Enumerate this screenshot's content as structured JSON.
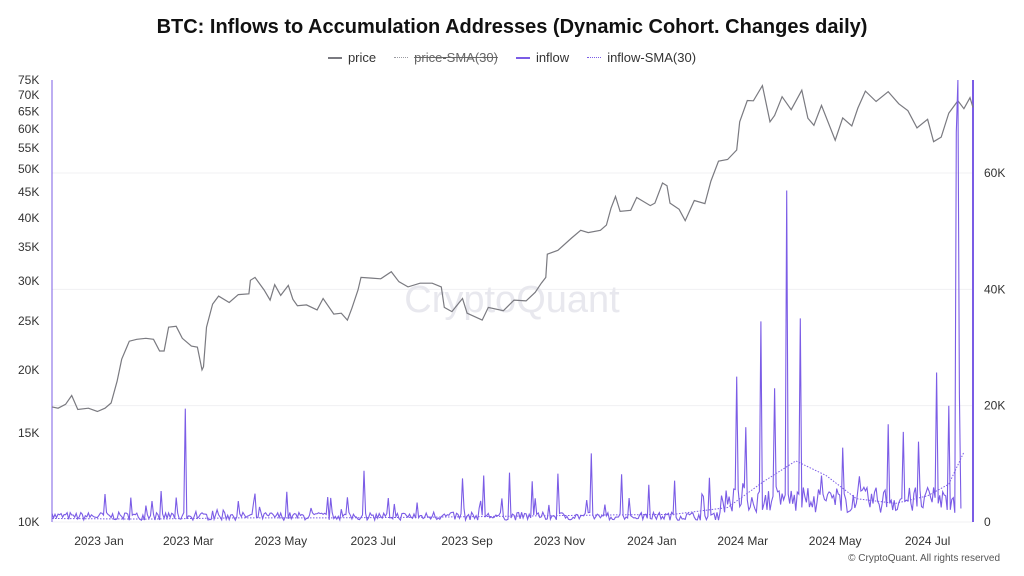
{
  "title": "BTC: Inflows to Accumulation Addresses (Dynamic Cohort. Changes daily)",
  "legend": [
    {
      "key": "price",
      "label": "price",
      "color": "#7a7a80",
      "style": "solid",
      "enabled": true
    },
    {
      "key": "price_sma",
      "label": "price-SMA(30)",
      "color": "#9a9aa0",
      "style": "dotted",
      "enabled": false
    },
    {
      "key": "inflow",
      "label": "inflow",
      "color": "#7b5ce6",
      "style": "solid",
      "enabled": true
    },
    {
      "key": "inflow_sma",
      "label": "inflow-SMA(30)",
      "color": "#7b5ce6",
      "style": "dotted",
      "enabled": true
    }
  ],
  "watermark": "CryptoQuant",
  "copyright": "© CryptoQuant. All rights reserved",
  "colors": {
    "price": "#7a7a80",
    "inflow": "#7b5ce6",
    "grid": "#f0f0f3"
  },
  "chart_data": {
    "type": "line",
    "title": "BTC: Inflows to Accumulation Addresses (Dynamic Cohort. Changes daily)",
    "x_tick_labels": [
      "2023 Jan",
      "2023 Mar",
      "2023 May",
      "2023 Jul",
      "2023 Sep",
      "2023 Nov",
      "2024 Jan",
      "2024 Mar",
      "2024 May",
      "2024 Jul"
    ],
    "x_tick_dates": [
      "2023-01-01",
      "2023-03-01",
      "2023-05-01",
      "2023-07-01",
      "2023-09-01",
      "2023-11-01",
      "2024-01-01",
      "2024-03-01",
      "2024-05-01",
      "2024-07-01"
    ],
    "xlim": [
      "2022-12-01",
      "2024-07-31"
    ],
    "y_left": {
      "scale": "log",
      "lim": [
        10000,
        75000
      ],
      "ticks": [
        10000,
        15000,
        20000,
        25000,
        30000,
        35000,
        40000,
        45000,
        50000,
        55000,
        60000,
        65000,
        70000,
        75000
      ],
      "tick_labels": [
        "10K",
        "15K",
        "20K",
        "25K",
        "30K",
        "35K",
        "40K",
        "45K",
        "50K",
        "55K",
        "60K",
        "65K",
        "70K",
        "75K"
      ]
    },
    "y_right": {
      "scale": "linear",
      "lim": [
        0,
        76000
      ],
      "ticks": [
        0,
        20000,
        40000,
        60000
      ],
      "tick_labels": [
        "0",
        "20K",
        "40K",
        "60K"
      ]
    },
    "grid": true,
    "legend_position": "top-center",
    "series": [
      {
        "name": "price",
        "axis": "left",
        "color": "#7a7a80",
        "points": [
          [
            "2022-12-01",
            16900
          ],
          [
            "2022-12-05",
            16800
          ],
          [
            "2022-12-10",
            17100
          ],
          [
            "2022-12-14",
            17800
          ],
          [
            "2022-12-18",
            16700
          ],
          [
            "2022-12-25",
            16800
          ],
          [
            "2022-12-31",
            16550
          ],
          [
            "2023-01-05",
            16800
          ],
          [
            "2023-01-09",
            17200
          ],
          [
            "2023-01-13",
            19000
          ],
          [
            "2023-01-16",
            21000
          ],
          [
            "2023-01-21",
            22800
          ],
          [
            "2023-01-26",
            23000
          ],
          [
            "2023-02-01",
            23100
          ],
          [
            "2023-02-06",
            23000
          ],
          [
            "2023-02-10",
            21800
          ],
          [
            "2023-02-13",
            21800
          ],
          [
            "2023-02-16",
            24300
          ],
          [
            "2023-02-21",
            24400
          ],
          [
            "2023-02-25",
            23100
          ],
          [
            "2023-03-03",
            22300
          ],
          [
            "2023-03-07",
            22200
          ],
          [
            "2023-03-10",
            20000
          ],
          [
            "2023-03-11",
            20300
          ],
          [
            "2023-03-13",
            24300
          ],
          [
            "2023-03-17",
            27000
          ],
          [
            "2023-03-21",
            28000
          ],
          [
            "2023-03-28",
            27200
          ],
          [
            "2023-04-03",
            28200
          ],
          [
            "2023-04-10",
            28300
          ],
          [
            "2023-04-11",
            30100
          ],
          [
            "2023-04-14",
            30500
          ],
          [
            "2023-04-20",
            28800
          ],
          [
            "2023-04-24",
            27500
          ],
          [
            "2023-04-27",
            29500
          ],
          [
            "2023-05-01",
            28100
          ],
          [
            "2023-05-06",
            29400
          ],
          [
            "2023-05-09",
            27600
          ],
          [
            "2023-05-12",
            26800
          ],
          [
            "2023-05-18",
            26900
          ],
          [
            "2023-05-25",
            26300
          ],
          [
            "2023-05-29",
            27700
          ],
          [
            "2023-06-05",
            25800
          ],
          [
            "2023-06-10",
            25900
          ],
          [
            "2023-06-14",
            25100
          ],
          [
            "2023-06-17",
            26500
          ],
          [
            "2023-06-21",
            28800
          ],
          [
            "2023-06-23",
            30500
          ],
          [
            "2023-06-30",
            30400
          ],
          [
            "2023-07-06",
            30300
          ],
          [
            "2023-07-13",
            31300
          ],
          [
            "2023-07-18",
            29900
          ],
          [
            "2023-07-24",
            29200
          ],
          [
            "2023-08-01",
            29700
          ],
          [
            "2023-08-09",
            29700
          ],
          [
            "2023-08-15",
            29200
          ],
          [
            "2023-08-17",
            26600
          ],
          [
            "2023-08-22",
            26100
          ],
          [
            "2023-08-29",
            27700
          ],
          [
            "2023-09-01",
            25900
          ],
          [
            "2023-09-11",
            25100
          ],
          [
            "2023-09-15",
            26600
          ],
          [
            "2023-09-25",
            26200
          ],
          [
            "2023-10-02",
            27500
          ],
          [
            "2023-10-10",
            27400
          ],
          [
            "2023-10-16",
            28500
          ],
          [
            "2023-10-20",
            29700
          ],
          [
            "2023-10-23",
            30500
          ],
          [
            "2023-10-24",
            33900
          ],
          [
            "2023-10-31",
            34500
          ],
          [
            "2023-11-09",
            36500
          ],
          [
            "2023-11-15",
            37800
          ],
          [
            "2023-11-20",
            37400
          ],
          [
            "2023-11-28",
            37800
          ],
          [
            "2023-12-02",
            38700
          ],
          [
            "2023-12-05",
            41800
          ],
          [
            "2023-12-08",
            44100
          ],
          [
            "2023-12-11",
            41200
          ],
          [
            "2023-12-18",
            41400
          ],
          [
            "2023-12-22",
            43900
          ],
          [
            "2023-12-31",
            42300
          ],
          [
            "2024-01-03",
            42800
          ],
          [
            "2024-01-08",
            46900
          ],
          [
            "2024-01-11",
            46300
          ],
          [
            "2024-01-13",
            42800
          ],
          [
            "2024-01-19",
            41600
          ],
          [
            "2024-01-23",
            39500
          ],
          [
            "2024-01-29",
            43300
          ],
          [
            "2024-02-05",
            42700
          ],
          [
            "2024-02-09",
            47300
          ],
          [
            "2024-02-14",
            51800
          ],
          [
            "2024-02-20",
            52200
          ],
          [
            "2024-02-26",
            54500
          ],
          [
            "2024-02-28",
            62000
          ],
          [
            "2024-03-04",
            68300
          ],
          [
            "2024-03-08",
            68200
          ],
          [
            "2024-03-14",
            73100
          ],
          [
            "2024-03-19",
            62000
          ],
          [
            "2024-03-22",
            63800
          ],
          [
            "2024-03-27",
            69500
          ],
          [
            "2024-04-02",
            65500
          ],
          [
            "2024-04-09",
            71600
          ],
          [
            "2024-04-13",
            63000
          ],
          [
            "2024-04-17",
            61000
          ],
          [
            "2024-04-22",
            66800
          ],
          [
            "2024-05-01",
            57000
          ],
          [
            "2024-05-06",
            63100
          ],
          [
            "2024-05-12",
            60800
          ],
          [
            "2024-05-16",
            66000
          ],
          [
            "2024-05-21",
            71300
          ],
          [
            "2024-05-28",
            68000
          ],
          [
            "2024-06-05",
            71100
          ],
          [
            "2024-06-12",
            67300
          ],
          [
            "2024-06-18",
            65200
          ],
          [
            "2024-06-24",
            60300
          ],
          [
            "2024-07-01",
            62700
          ],
          [
            "2024-07-05",
            56600
          ],
          [
            "2024-07-10",
            57800
          ],
          [
            "2024-07-15",
            64500
          ],
          [
            "2024-07-21",
            68200
          ],
          [
            "2024-07-25",
            65800
          ],
          [
            "2024-07-29",
            69200
          ],
          [
            "2024-07-31",
            66200
          ]
        ]
      },
      {
        "name": "inflow",
        "axis": "right",
        "color": "#7b5ce6",
        "points": [
          [
            "2022-12-01",
            1500
          ],
          [
            "2022-12-15",
            1200
          ],
          [
            "2023-01-05",
            4800
          ],
          [
            "2023-01-22",
            4200
          ],
          [
            "2023-02-05",
            3600
          ],
          [
            "2023-02-18",
            1500
          ],
          [
            "2023-02-27",
            19500
          ],
          [
            "2023-03-06",
            1800
          ],
          [
            "2023-03-20",
            2100
          ],
          [
            "2023-04-03",
            3600
          ],
          [
            "2023-04-17",
            2600
          ],
          [
            "2023-05-05",
            5200
          ],
          [
            "2023-05-21",
            2400
          ],
          [
            "2023-06-10",
            2200
          ],
          [
            "2023-06-25",
            8800
          ],
          [
            "2023-07-15",
            3100
          ],
          [
            "2023-08-10",
            1700
          ],
          [
            "2023-08-29",
            7500
          ],
          [
            "2023-09-12",
            8000
          ],
          [
            "2023-09-29",
            8500
          ],
          [
            "2023-10-14",
            7000
          ],
          [
            "2023-10-31",
            8300
          ],
          [
            "2023-11-22",
            11800
          ],
          [
            "2023-12-12",
            8200
          ],
          [
            "2023-12-30",
            6400
          ],
          [
            "2024-01-16",
            7100
          ],
          [
            "2024-02-08",
            7600
          ],
          [
            "2024-02-26",
            25000
          ],
          [
            "2024-03-03",
            16300
          ],
          [
            "2024-03-13",
            34500
          ],
          [
            "2024-03-22",
            23000
          ],
          [
            "2024-03-30",
            57000
          ],
          [
            "2024-04-08",
            35000
          ],
          [
            "2024-04-22",
            8000
          ],
          [
            "2024-05-06",
            12800
          ],
          [
            "2024-05-19",
            5500
          ],
          [
            "2024-06-05",
            16800
          ],
          [
            "2024-06-15",
            15500
          ],
          [
            "2024-06-25",
            13800
          ],
          [
            "2024-07-07",
            25700
          ],
          [
            "2024-07-15",
            20000
          ],
          [
            "2024-07-20",
            67000
          ],
          [
            "2024-07-21",
            76000
          ],
          [
            "2024-07-22",
            22000
          ]
        ]
      },
      {
        "name": "inflow-SMA(30)",
        "axis": "right",
        "color": "#7b5ce6",
        "style": "dotted",
        "points": [
          [
            "2022-12-01",
            600
          ],
          [
            "2023-02-01",
            500
          ],
          [
            "2023-04-01",
            700
          ],
          [
            "2023-06-01",
            700
          ],
          [
            "2023-08-01",
            800
          ],
          [
            "2023-10-01",
            1000
          ],
          [
            "2023-12-01",
            1200
          ],
          [
            "2024-01-15",
            1300
          ],
          [
            "2024-02-20",
            2500
          ],
          [
            "2024-03-15",
            7000
          ],
          [
            "2024-04-05",
            10500
          ],
          [
            "2024-04-25",
            8000
          ],
          [
            "2024-05-15",
            4000
          ],
          [
            "2024-06-10",
            3200
          ],
          [
            "2024-07-01",
            4500
          ],
          [
            "2024-07-15",
            6500
          ],
          [
            "2024-07-25",
            12000
          ]
        ]
      }
    ]
  }
}
